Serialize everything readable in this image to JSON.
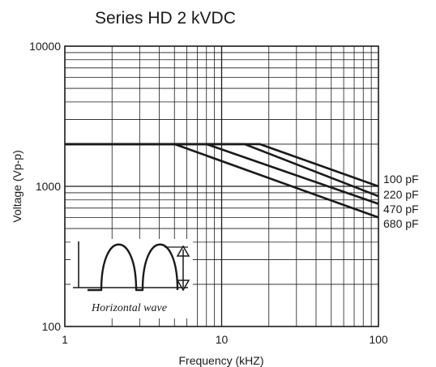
{
  "chart_data": {
    "type": "line",
    "title": "Series HD 2 kVDC",
    "xlabel": "Frequency (kHZ)",
    "ylabel": "Voltage (Vp-p)",
    "x_scale": "log",
    "y_scale": "log",
    "xlim": [
      1,
      100
    ],
    "ylim": [
      100,
      10000
    ],
    "grid": true,
    "x_ticks": [
      {
        "value": 1,
        "label": "1"
      },
      {
        "value": 10,
        "label": "10"
      },
      {
        "value": 100,
        "label": "100"
      }
    ],
    "y_ticks": [
      {
        "value": 100,
        "label": "100"
      },
      {
        "value": 1000,
        "label": "1000"
      },
      {
        "value": 10000,
        "label": "10000"
      }
    ],
    "series": [
      {
        "name": "100 pF",
        "points": [
          [
            1,
            2000
          ],
          [
            17.5,
            2000
          ],
          [
            100,
            1000
          ]
        ]
      },
      {
        "name": "220 pF",
        "points": [
          [
            1,
            2000
          ],
          [
            14,
            2000
          ],
          [
            100,
            850
          ]
        ]
      },
      {
        "name": "470 pF",
        "points": [
          [
            1,
            2000
          ],
          [
            8,
            2000
          ],
          [
            100,
            750
          ]
        ]
      },
      {
        "name": "680 pF",
        "points": [
          [
            1,
            2000
          ],
          [
            5,
            2000
          ],
          [
            100,
            600
          ]
        ]
      }
    ],
    "inset": {
      "label": "Horizontal wave",
      "icon": "rectified-sine-wave-with-amplitude-arrow"
    }
  }
}
